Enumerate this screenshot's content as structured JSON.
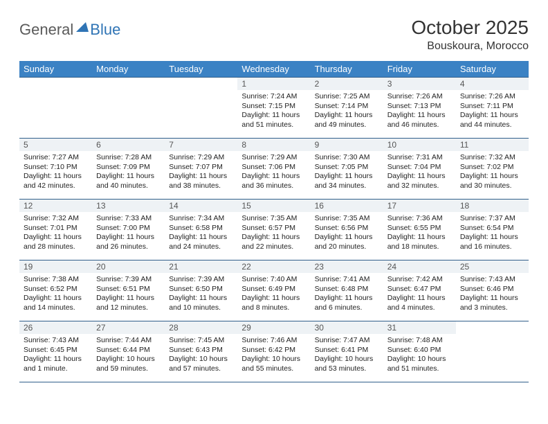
{
  "brand": {
    "part1": "General",
    "part2": "Blue"
  },
  "title": "October 2025",
  "location": "Bouskoura, Morocco",
  "colors": {
    "header_bg": "#3b82c4",
    "header_text": "#ffffff",
    "daynum_bg": "#eef2f5",
    "border": "#2f5e8a",
    "logo_gray": "#5a5a5a",
    "logo_blue": "#2f74b5"
  },
  "weekdays": [
    "Sunday",
    "Monday",
    "Tuesday",
    "Wednesday",
    "Thursday",
    "Friday",
    "Saturday"
  ],
  "weeks": [
    [
      null,
      null,
      null,
      {
        "n": "1",
        "sr": "7:24 AM",
        "ss": "7:15 PM",
        "dl": "11 hours and 51 minutes."
      },
      {
        "n": "2",
        "sr": "7:25 AM",
        "ss": "7:14 PM",
        "dl": "11 hours and 49 minutes."
      },
      {
        "n": "3",
        "sr": "7:26 AM",
        "ss": "7:13 PM",
        "dl": "11 hours and 46 minutes."
      },
      {
        "n": "4",
        "sr": "7:26 AM",
        "ss": "7:11 PM",
        "dl": "11 hours and 44 minutes."
      }
    ],
    [
      {
        "n": "5",
        "sr": "7:27 AM",
        "ss": "7:10 PM",
        "dl": "11 hours and 42 minutes."
      },
      {
        "n": "6",
        "sr": "7:28 AM",
        "ss": "7:09 PM",
        "dl": "11 hours and 40 minutes."
      },
      {
        "n": "7",
        "sr": "7:29 AM",
        "ss": "7:07 PM",
        "dl": "11 hours and 38 minutes."
      },
      {
        "n": "8",
        "sr": "7:29 AM",
        "ss": "7:06 PM",
        "dl": "11 hours and 36 minutes."
      },
      {
        "n": "9",
        "sr": "7:30 AM",
        "ss": "7:05 PM",
        "dl": "11 hours and 34 minutes."
      },
      {
        "n": "10",
        "sr": "7:31 AM",
        "ss": "7:04 PM",
        "dl": "11 hours and 32 minutes."
      },
      {
        "n": "11",
        "sr": "7:32 AM",
        "ss": "7:02 PM",
        "dl": "11 hours and 30 minutes."
      }
    ],
    [
      {
        "n": "12",
        "sr": "7:32 AM",
        "ss": "7:01 PM",
        "dl": "11 hours and 28 minutes."
      },
      {
        "n": "13",
        "sr": "7:33 AM",
        "ss": "7:00 PM",
        "dl": "11 hours and 26 minutes."
      },
      {
        "n": "14",
        "sr": "7:34 AM",
        "ss": "6:58 PM",
        "dl": "11 hours and 24 minutes."
      },
      {
        "n": "15",
        "sr": "7:35 AM",
        "ss": "6:57 PM",
        "dl": "11 hours and 22 minutes."
      },
      {
        "n": "16",
        "sr": "7:35 AM",
        "ss": "6:56 PM",
        "dl": "11 hours and 20 minutes."
      },
      {
        "n": "17",
        "sr": "7:36 AM",
        "ss": "6:55 PM",
        "dl": "11 hours and 18 minutes."
      },
      {
        "n": "18",
        "sr": "7:37 AM",
        "ss": "6:54 PM",
        "dl": "11 hours and 16 minutes."
      }
    ],
    [
      {
        "n": "19",
        "sr": "7:38 AM",
        "ss": "6:52 PM",
        "dl": "11 hours and 14 minutes."
      },
      {
        "n": "20",
        "sr": "7:39 AM",
        "ss": "6:51 PM",
        "dl": "11 hours and 12 minutes."
      },
      {
        "n": "21",
        "sr": "7:39 AM",
        "ss": "6:50 PM",
        "dl": "11 hours and 10 minutes."
      },
      {
        "n": "22",
        "sr": "7:40 AM",
        "ss": "6:49 PM",
        "dl": "11 hours and 8 minutes."
      },
      {
        "n": "23",
        "sr": "7:41 AM",
        "ss": "6:48 PM",
        "dl": "11 hours and 6 minutes."
      },
      {
        "n": "24",
        "sr": "7:42 AM",
        "ss": "6:47 PM",
        "dl": "11 hours and 4 minutes."
      },
      {
        "n": "25",
        "sr": "7:43 AM",
        "ss": "6:46 PM",
        "dl": "11 hours and 3 minutes."
      }
    ],
    [
      {
        "n": "26",
        "sr": "7:43 AM",
        "ss": "6:45 PM",
        "dl": "11 hours and 1 minute."
      },
      {
        "n": "27",
        "sr": "7:44 AM",
        "ss": "6:44 PM",
        "dl": "10 hours and 59 minutes."
      },
      {
        "n": "28",
        "sr": "7:45 AM",
        "ss": "6:43 PM",
        "dl": "10 hours and 57 minutes."
      },
      {
        "n": "29",
        "sr": "7:46 AM",
        "ss": "6:42 PM",
        "dl": "10 hours and 55 minutes."
      },
      {
        "n": "30",
        "sr": "7:47 AM",
        "ss": "6:41 PM",
        "dl": "10 hours and 53 minutes."
      },
      {
        "n": "31",
        "sr": "7:48 AM",
        "ss": "6:40 PM",
        "dl": "10 hours and 51 minutes."
      },
      null
    ]
  ],
  "labels": {
    "sunrise": "Sunrise: ",
    "sunset": "Sunset: ",
    "daylight": "Daylight: "
  }
}
